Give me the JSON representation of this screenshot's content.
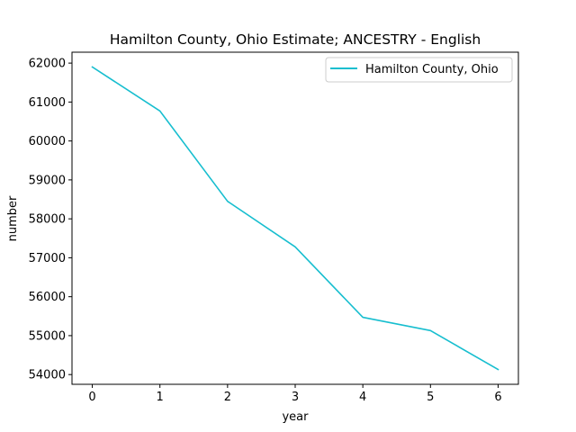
{
  "chart_data": {
    "type": "line",
    "title": "Hamilton County, Ohio Estimate; ANCESTRY - English",
    "xlabel": "year",
    "ylabel": "number",
    "x": [
      0,
      1,
      2,
      3,
      4,
      5,
      6
    ],
    "series": [
      {
        "name": "Hamilton County, Ohio",
        "color": "#17becf",
        "values": [
          61900,
          60770,
          58450,
          57280,
          55470,
          55130,
          54130
        ]
      }
    ],
    "xlim": [
      -0.3,
      6.3
    ],
    "ylim": [
      53750,
      62280
    ],
    "xticks": [
      0,
      1,
      2,
      3,
      4,
      5,
      6
    ],
    "yticks": [
      54000,
      55000,
      56000,
      57000,
      58000,
      59000,
      60000,
      61000,
      62000
    ],
    "grid": false,
    "legend_position": "top-right"
  }
}
